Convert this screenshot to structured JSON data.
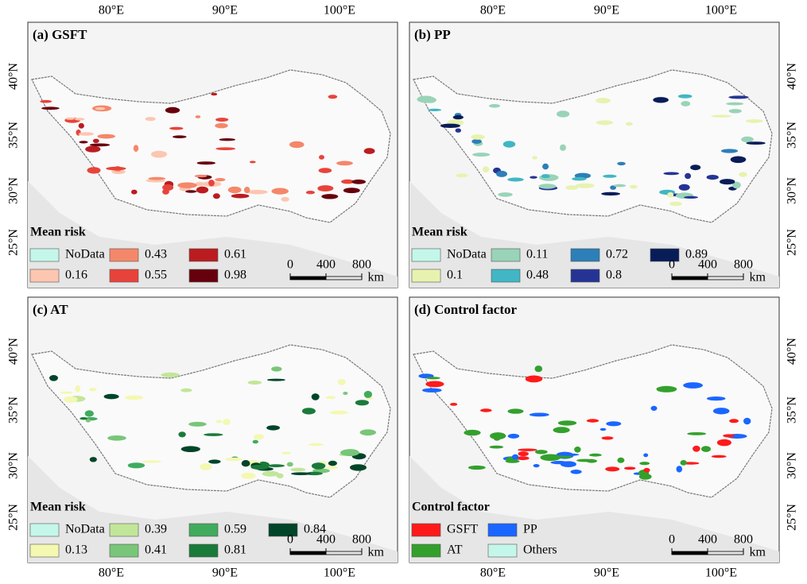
{
  "lon_labels": [
    "80°E",
    "90°E",
    "100°E"
  ],
  "lat_labels": [
    "25°N",
    "30°N",
    "35°N",
    "40°N"
  ],
  "scale_bar": {
    "ticks": [
      0,
      400,
      800
    ],
    "unit": "km"
  },
  "panels": [
    {
      "title": "(a)  GSFT",
      "legend_title": "Mean risk",
      "legend": [
        {
          "label": "NoData",
          "color": "#c4f7ea"
        },
        {
          "label": "0.16",
          "color": "#fcc6b0"
        },
        {
          "label": "0.43",
          "color": "#f4876a"
        },
        {
          "label": "0.55",
          "color": "#e8433a"
        },
        {
          "label": "0.61",
          "color": "#bb1c20"
        },
        {
          "label": "0.98",
          "color": "#67000d"
        }
      ]
    },
    {
      "title": "(b)  PP",
      "legend_title": "Mean risk",
      "legend": [
        {
          "label": "NoData",
          "color": "#c4f7ea"
        },
        {
          "label": "0.1",
          "color": "#e8f2b0"
        },
        {
          "label": "0.11",
          "color": "#99d3b8"
        },
        {
          "label": "0.48",
          "color": "#41b6c4"
        },
        {
          "label": "0.72",
          "color": "#2c7fb8"
        },
        {
          "label": "0.8",
          "color": "#253494"
        },
        {
          "label": "0.89",
          "color": "#081d58"
        }
      ]
    },
    {
      "title": "(c) AT",
      "legend_title": "Mean risk",
      "legend": [
        {
          "label": "NoData",
          "color": "#c4f7ea"
        },
        {
          "label": "0.13",
          "color": "#f4f8b0"
        },
        {
          "label": "0.39",
          "color": "#c2e699"
        },
        {
          "label": "0.41",
          "color": "#78c679"
        },
        {
          "label": "0.59",
          "color": "#41ab5d"
        },
        {
          "label": "0.81",
          "color": "#1a7a3a"
        },
        {
          "label": "0.84",
          "color": "#004529"
        }
      ]
    },
    {
      "title": "(d) Control factor",
      "legend_title": "Control factor",
      "legend": [
        {
          "label": "GSFT",
          "color": "#ff1a1a"
        },
        {
          "label": "AT",
          "color": "#33a02c"
        },
        {
          "label": "PP",
          "color": "#1a66ff"
        },
        {
          "label": "Others",
          "color": "#c4f7ea"
        }
      ]
    }
  ]
}
